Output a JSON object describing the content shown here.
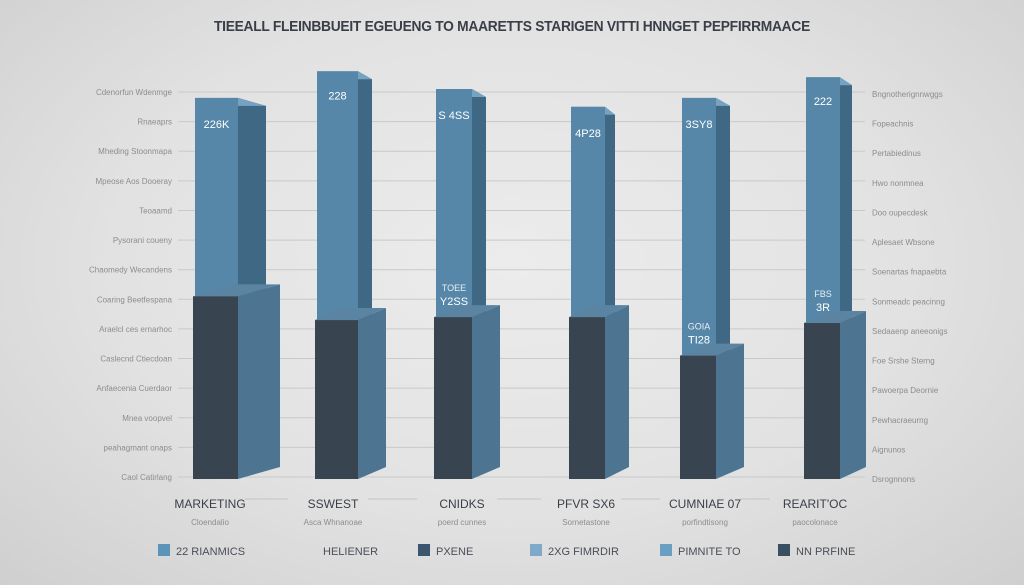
{
  "chart_data": {
    "type": "bar",
    "stacked": true,
    "style": "3d",
    "title": "TIEEALL FLEINBBUEIT EGEUENG TO MAARETTS STARIGEN VITTI HNNGET PEPFIRRMAACE",
    "categories": [
      "MARKETING",
      "SSWEST",
      "CNIDKS",
      "PFVR SX6",
      "CUMNIAE 07",
      "REARIT'OC"
    ],
    "category_sublabels": [
      "Cloendalio",
      "Asca Whnanoae",
      "poerd cunnes",
      "Sornetastone",
      "porfindtisong",
      "paocolonace"
    ],
    "left_tick_labels": [
      "Cdenorfun Wdenmge",
      "Rnaeaprs",
      "Mheding Stoonmapa",
      "Mpeose Aos Dooeray",
      "Teoaamd",
      "Pysorani coueny",
      "Chaomedy Wecandens",
      "Coaring Beetfespana",
      "Araelcl ces ernarhoc",
      "Caslecnd Ctiecdoan",
      "Anfaecenia Cuerdaor",
      "Mnea voopvel",
      "peahagmant onaps",
      "Caol Catirlang"
    ],
    "right_tick_labels": [
      "Bngnotherignnwggs",
      "Fopeachnis",
      "Pertabiedinus",
      "Hwo nonmnea",
      "Doo oupecdesk",
      "Aplesaet Wbsone",
      "Soenartas fnapaebta",
      "Sonmeadc peacinng",
      "Sedaaenp aneeonigs",
      "Foe Srshe Sterng",
      "Pawoerpa Deornie",
      "Pewhacraeurng",
      "Aignunos",
      "Dsrognnons"
    ],
    "ylim": [
      0,
      13
    ],
    "grid": true,
    "series": [
      {
        "segment": "lower",
        "color": "#38444f",
        "values": [
          6.1,
          5.3,
          5.4,
          5.4,
          4.1,
          5.2
        ]
      },
      {
        "segment": "upper",
        "color": "#5687a8",
        "values": [
          6.7,
          8.4,
          7.7,
          7.1,
          8.7,
          8.3
        ]
      }
    ],
    "data_labels_top": [
      "226K",
      "228",
      "S 4SS",
      "4P28",
      "3SY8",
      "222"
    ],
    "data_labels_mid": [
      "",
      "",
      "TOEE Y2SS",
      "",
      "GOIA TI28",
      "FBS 3R"
    ],
    "legend": {
      "placement": "bottom",
      "items": [
        {
          "label": "22 RIANMICS",
          "color": "#5c93b8"
        },
        {
          "label": "HELIENER",
          "color": "#d6d9dc"
        },
        {
          "label": "PXENE",
          "color": "#3c5670"
        },
        {
          "label": "2XG FIMRDIR",
          "color": "#7ea9c8"
        },
        {
          "label": "PIMNITE TO",
          "color": "#6a9fc4"
        },
        {
          "label": "NN PRFINE",
          "color": "#3b4f63"
        }
      ]
    }
  }
}
